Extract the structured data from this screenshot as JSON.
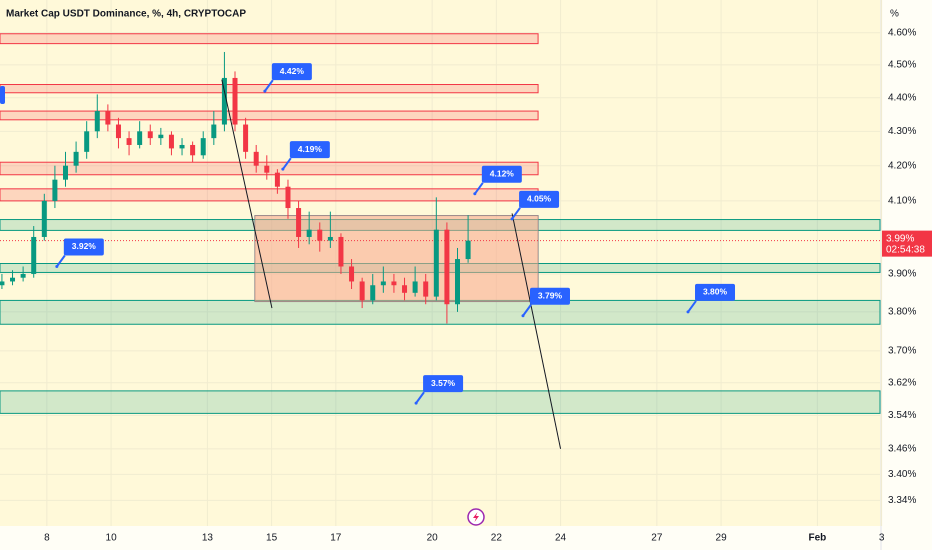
{
  "chart_data": {
    "type": "candlestick",
    "title": "Market Cap USDT Dominance, %, 4h, CRYPTOCAP",
    "y_unit": "%",
    "log_scale": true,
    "grid": true,
    "up_color": "#089981",
    "down_color": "#f23645",
    "xlim": [
      6.54,
      33.95
    ],
    "xticks": [
      8,
      10,
      13,
      15,
      17,
      20,
      22,
      24,
      27,
      29,
      {
        "value": 32,
        "label": "Feb"
      },
      {
        "value": 34,
        "label": "3"
      }
    ],
    "ylim": [
      3.3,
      4.65
    ],
    "yticks": [
      {
        "value": 4.6,
        "label": "4.60%"
      },
      {
        "value": 4.5,
        "label": "4.50%"
      },
      {
        "value": 4.4,
        "label": "4.40%"
      },
      {
        "value": 4.3,
        "label": "4.30%"
      },
      {
        "value": 4.2,
        "label": "4.20%"
      },
      {
        "value": 4.1,
        "label": "4.10%"
      },
      {
        "value": 3.9,
        "label": "3.90%"
      },
      {
        "value": 3.8,
        "label": "3.80%"
      },
      {
        "value": 3.7,
        "label": "3.70%"
      },
      {
        "value": 3.62,
        "label": "3.62%"
      },
      {
        "value": 3.54,
        "label": "3.54%"
      },
      {
        "value": 3.46,
        "label": "3.46%"
      },
      {
        "value": 3.4,
        "label": "3.40%"
      },
      {
        "value": 3.34,
        "label": "3.34%"
      }
    ],
    "x": [
      6.6,
      6.93,
      7.26,
      7.59,
      7.92,
      8.25,
      8.58,
      8.91,
      9.24,
      9.57,
      9.9,
      10.23,
      10.56,
      10.89,
      11.22,
      11.55,
      11.88,
      12.21,
      12.54,
      12.87,
      13.2,
      13.53,
      13.86,
      14.19,
      14.52,
      14.85,
      15.18,
      15.51,
      15.84,
      16.17,
      16.5,
      16.83,
      17.16,
      17.49,
      17.82,
      18.15,
      18.48,
      18.81,
      19.14,
      19.47,
      19.8,
      20.13,
      20.46,
      20.79,
      21.12
    ],
    "candles": [
      [
        3.87,
        3.9,
        3.86,
        3.88
      ],
      [
        3.88,
        3.91,
        3.87,
        3.89
      ],
      [
        3.89,
        3.92,
        3.88,
        3.9
      ],
      [
        3.9,
        4.03,
        3.89,
        4.0
      ],
      [
        4.0,
        4.12,
        3.99,
        4.1
      ],
      [
        4.1,
        4.2,
        4.08,
        4.16
      ],
      [
        4.16,
        4.24,
        4.14,
        4.2
      ],
      [
        4.2,
        4.27,
        4.18,
        4.24
      ],
      [
        4.24,
        4.33,
        4.22,
        4.3
      ],
      [
        4.3,
        4.41,
        4.28,
        4.36
      ],
      [
        4.36,
        4.38,
        4.3,
        4.32
      ],
      [
        4.32,
        4.34,
        4.25,
        4.28
      ],
      [
        4.28,
        4.3,
        4.23,
        4.26
      ],
      [
        4.26,
        4.33,
        4.25,
        4.3
      ],
      [
        4.3,
        4.32,
        4.26,
        4.28
      ],
      [
        4.28,
        4.31,
        4.26,
        4.29
      ],
      [
        4.29,
        4.3,
        4.23,
        4.25
      ],
      [
        4.25,
        4.28,
        4.23,
        4.26
      ],
      [
        4.26,
        4.27,
        4.21,
        4.23
      ],
      [
        4.23,
        4.3,
        4.22,
        4.28
      ],
      [
        4.28,
        4.36,
        4.26,
        4.32
      ],
      [
        4.32,
        4.54,
        4.3,
        4.46
      ],
      [
        4.46,
        4.48,
        4.3,
        4.32
      ],
      [
        4.32,
        4.34,
        4.22,
        4.24
      ],
      [
        4.24,
        4.26,
        4.18,
        4.2
      ],
      [
        4.2,
        4.23,
        4.16,
        4.18
      ],
      [
        4.18,
        4.19,
        4.12,
        4.14
      ],
      [
        4.14,
        4.16,
        4.05,
        4.08
      ],
      [
        4.08,
        4.1,
        3.97,
        4.0
      ],
      [
        4.0,
        4.07,
        3.98,
        4.02
      ],
      [
        4.02,
        4.04,
        3.96,
        3.99
      ],
      [
        3.99,
        4.07,
        3.97,
        4.0
      ],
      [
        4.0,
        4.01,
        3.9,
        3.92
      ],
      [
        3.92,
        3.94,
        3.86,
        3.88
      ],
      [
        3.88,
        3.89,
        3.81,
        3.83
      ],
      [
        3.83,
        3.9,
        3.82,
        3.87
      ],
      [
        3.87,
        3.92,
        3.85,
        3.88
      ],
      [
        3.88,
        3.9,
        3.85,
        3.87
      ],
      [
        3.87,
        3.89,
        3.83,
        3.85
      ],
      [
        3.85,
        3.92,
        3.84,
        3.88
      ],
      [
        3.88,
        3.9,
        3.82,
        3.84
      ],
      [
        3.84,
        4.11,
        3.83,
        4.02
      ],
      [
        4.02,
        4.04,
        3.77,
        3.82
      ],
      [
        3.82,
        3.97,
        3.8,
        3.94
      ],
      [
        3.94,
        4.06,
        3.93,
        3.99
      ]
    ],
    "zones": [
      {
        "top": 4.597,
        "bottom": 4.566,
        "from": 6.54,
        "to": 23.3,
        "color": "#f23645"
      },
      {
        "top": 4.44,
        "bottom": 4.415,
        "from": 6.54,
        "to": 23.3,
        "color": "#f23645"
      },
      {
        "top": 4.36,
        "bottom": 4.334,
        "from": 6.54,
        "to": 23.3,
        "color": "#f23645"
      },
      {
        "top": 4.21,
        "bottom": 4.174,
        "from": 6.54,
        "to": 23.3,
        "color": "#f23645"
      },
      {
        "top": 4.134,
        "bottom": 4.1,
        "from": 6.54,
        "to": 23.3,
        "color": "#f23645"
      },
      {
        "top": 4.048,
        "bottom": 4.018,
        "from": 6.54,
        "to": 33.95,
        "color": "#089981"
      },
      {
        "top": 3.928,
        "bottom": 3.904,
        "from": 6.54,
        "to": 33.95,
        "color": "#089981"
      },
      {
        "top": 3.83,
        "bottom": 3.768,
        "from": 6.54,
        "to": 33.95,
        "color": "#089981"
      },
      {
        "top": 3.6,
        "bottom": 3.545,
        "from": 6.54,
        "to": 33.95,
        "color": "#089981"
      },
      {
        "top": 4.059,
        "bottom": 3.827,
        "from": 14.48,
        "to": 23.3,
        "color": "#787b86"
      }
    ],
    "trend_lines": [
      {
        "from": [
          13.45,
          4.455
        ],
        "to": [
          15.01,
          3.81
        ]
      },
      {
        "from": [
          22.49,
          4.065
        ],
        "to": [
          24.0,
          3.46
        ]
      }
    ],
    "annotations": [
      {
        "label": "4.42%",
        "value": 4.42,
        "x": 14.79
      },
      {
        "label": "4.19%",
        "value": 4.19,
        "x": 15.35
      },
      {
        "label": "4.12%",
        "value": 4.12,
        "x": 21.33
      },
      {
        "label": "4.05%",
        "value": 4.05,
        "x": 22.49
      },
      {
        "label": "3.92%",
        "value": 3.92,
        "x": 8.31
      },
      {
        "label": "3.79%",
        "value": 3.79,
        "x": 22.83
      },
      {
        "label": "3.80%",
        "value": 3.8,
        "x": 27.97
      },
      {
        "label": "3.57%",
        "value": 3.57,
        "x": 19.5
      }
    ],
    "last_price": 3.99,
    "last_price_label": "3.99%",
    "countdown": "02:54:38"
  }
}
